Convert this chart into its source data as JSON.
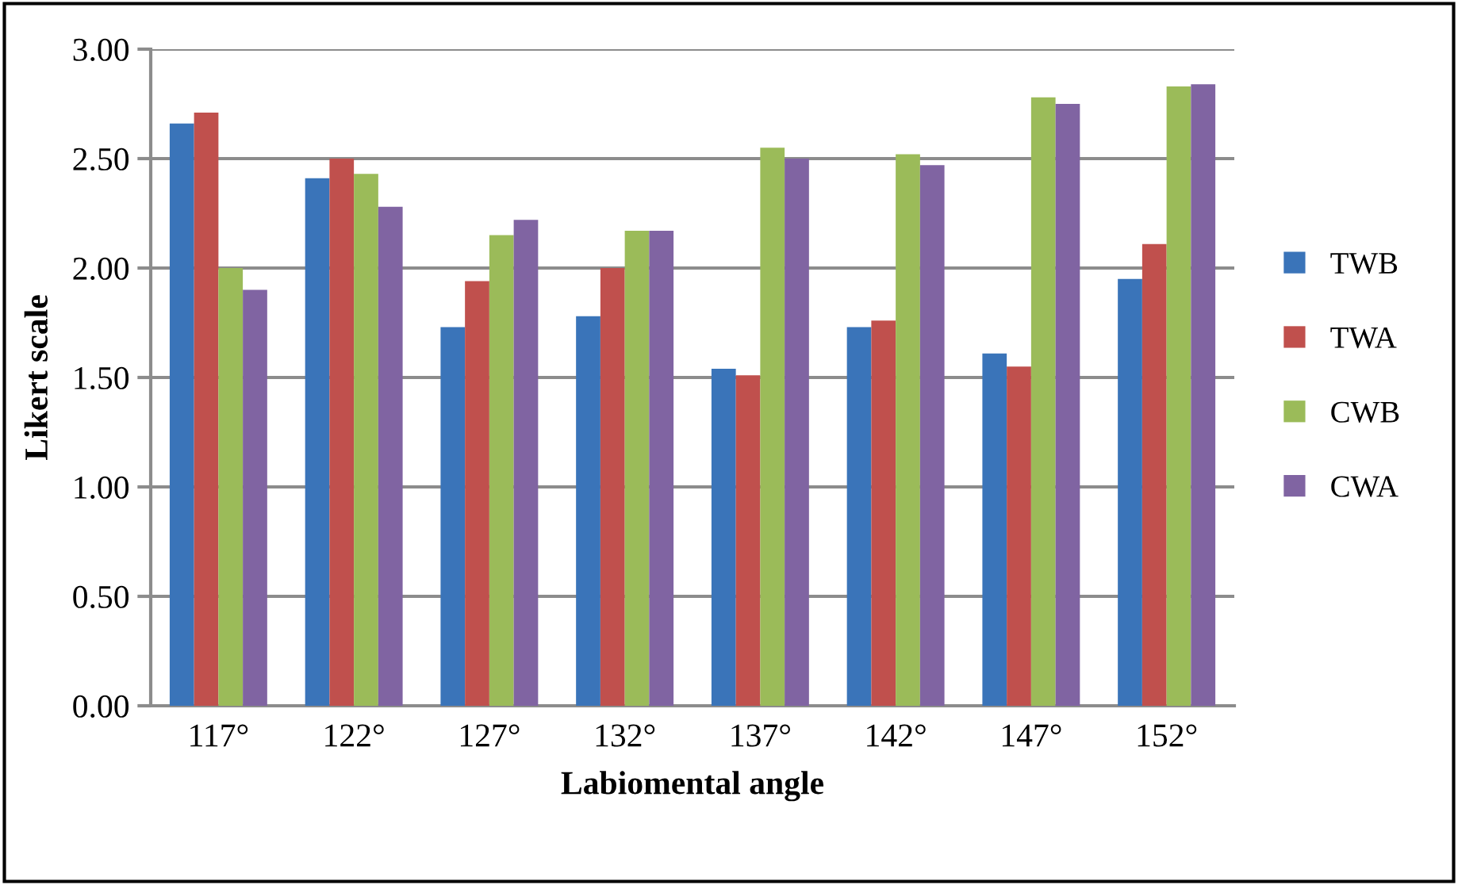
{
  "chart_data": {
    "type": "bar",
    "xlabel": "Labiomental angle",
    "ylabel": "Likert scale",
    "categories": [
      "117°",
      "122°",
      "127°",
      "132°",
      "137°",
      "142°",
      "147°",
      "152°"
    ],
    "series": [
      {
        "name": "TWB",
        "color": "#3a74b9",
        "values": [
          2.66,
          2.41,
          1.73,
          1.78,
          1.54,
          1.73,
          1.61,
          1.95
        ]
      },
      {
        "name": "TWA",
        "color": "#c0504d",
        "values": [
          2.71,
          2.5,
          1.94,
          2.0,
          1.51,
          1.76,
          1.55,
          2.11
        ]
      },
      {
        "name": "CWB",
        "color": "#9bbb59",
        "values": [
          2.0,
          2.43,
          2.15,
          2.17,
          2.55,
          2.52,
          2.78,
          2.83
        ]
      },
      {
        "name": "CWA",
        "color": "#8064a2",
        "values": [
          1.9,
          2.28,
          2.22,
          2.17,
          2.5,
          2.47,
          2.75,
          2.84
        ]
      }
    ],
    "ylim": [
      0,
      3
    ],
    "yticks": [
      {
        "value": 0,
        "label": "0.00"
      },
      {
        "value": 0.5,
        "label": "0.50"
      },
      {
        "value": 1,
        "label": "1.00"
      },
      {
        "value": 1.5,
        "label": "1.50"
      },
      {
        "value": 2,
        "label": "2.00"
      },
      {
        "value": 2.5,
        "label": "2.50"
      },
      {
        "value": 3,
        "label": "3.00"
      }
    ],
    "grid": "y",
    "legend": "right"
  }
}
